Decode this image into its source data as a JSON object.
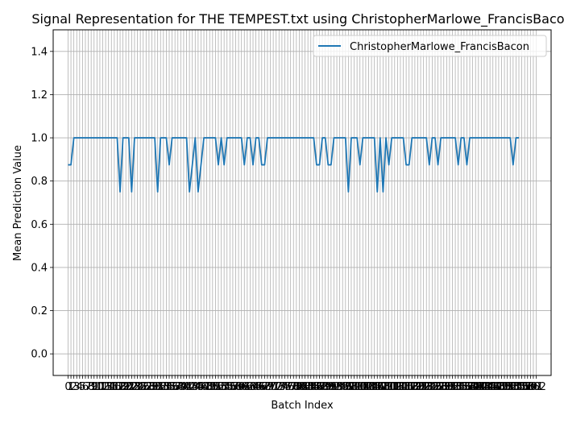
{
  "chart_data": {
    "type": "line",
    "title": "Signal Representation for THE TEMPEST.txt using ChristopherMarlowe_FrancisBacon",
    "xlabel": "Batch Index",
    "ylabel": "Mean Prediction Value",
    "xlim": [
      -5.15,
      167.15
    ],
    "ylim": [
      -0.1,
      1.5
    ],
    "yticks": [
      0.0,
      0.2,
      0.4,
      0.6,
      0.8,
      1.0,
      1.2,
      1.4
    ],
    "ytick_labels": [
      "0.0",
      "0.2",
      "0.4",
      "0.6",
      "0.8",
      "1.0",
      "1.2",
      "1.4"
    ],
    "xtick_start": 0,
    "xtick_end": 162,
    "grid": true,
    "legend": "top-right",
    "colors": {
      "series": "#1f77b4",
      "grid": "#b0b0b0"
    },
    "series": [
      {
        "name": "ChristopherMarlowe_FrancisBacon",
        "values": [
          0.875,
          0.875,
          1,
          1,
          1,
          1,
          1,
          1,
          1,
          1,
          1,
          1,
          1,
          1,
          1,
          1,
          1,
          1,
          0.75,
          1,
          1,
          1,
          0.75,
          1,
          1,
          1,
          1,
          1,
          1,
          1,
          1,
          0.75,
          1,
          1,
          1,
          0.875,
          1,
          1,
          1,
          1,
          1,
          1,
          0.75,
          0.875,
          1,
          0.75,
          0.875,
          1,
          1,
          1,
          1,
          1,
          0.875,
          1,
          0.875,
          1,
          1,
          1,
          1,
          1,
          1,
          0.875,
          1,
          1,
          0.875,
          1,
          1,
          0.875,
          0.875,
          1,
          1,
          1,
          1,
          1,
          1,
          1,
          1,
          1,
          1,
          1,
          1,
          1,
          1,
          1,
          1,
          1,
          0.875,
          0.875,
          1,
          1,
          0.875,
          0.875,
          1,
          1,
          1,
          1,
          1,
          0.75,
          1,
          1,
          1,
          0.875,
          1,
          1,
          1,
          1,
          1,
          0.75,
          1,
          0.75,
          1,
          0.875,
          1,
          1,
          1,
          1,
          1,
          0.875,
          0.875,
          1,
          1,
          1,
          1,
          1,
          1,
          0.875,
          1,
          1,
          0.875,
          1,
          1,
          1,
          1,
          1,
          1,
          0.875,
          1,
          1,
          0.875,
          1,
          1,
          1,
          1,
          1,
          1,
          1,
          1,
          1,
          1,
          1,
          1,
          1,
          1,
          1,
          0.875,
          1,
          1
        ]
      }
    ]
  }
}
